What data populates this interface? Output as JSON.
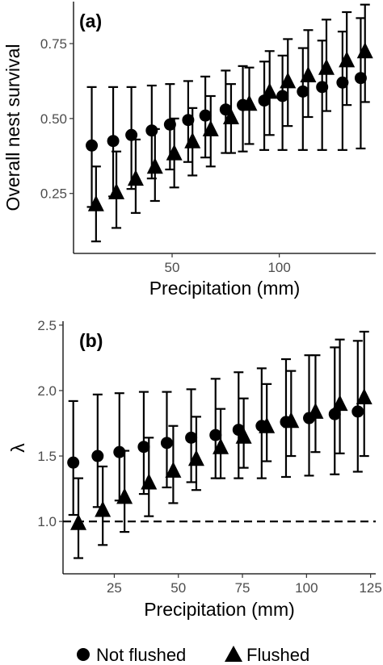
{
  "chart_data": [
    {
      "panel_label": "(a)",
      "type": "scatter",
      "xlabel": "Precipitation (mm)",
      "ylabel": "Overall nest survival",
      "xlim": [
        4,
        145
      ],
      "ylim": [
        0.05,
        0.89
      ],
      "xticks": [
        50,
        100
      ],
      "yticks": [
        0.25,
        0.5,
        0.75
      ],
      "ytick_labels": [
        "0.25",
        "0.50",
        "0.75"
      ],
      "series": [
        {
          "name": "Not flushed",
          "marker": "circle",
          "x": [
            12.5,
            22.5,
            31,
            40.5,
            49,
            57.5,
            65.5,
            75,
            83,
            93,
            101.5,
            111,
            120,
            129.5,
            138
          ],
          "y": [
            0.41,
            0.425,
            0.445,
            0.46,
            0.48,
            0.495,
            0.51,
            0.53,
            0.545,
            0.56,
            0.575,
            0.59,
            0.605,
            0.62,
            0.635
          ],
          "lower": [
            0.205,
            0.24,
            0.265,
            0.3,
            0.33,
            0.355,
            0.37,
            0.385,
            0.39,
            0.395,
            0.395,
            0.395,
            0.395,
            0.395,
            0.4
          ],
          "upper": [
            0.605,
            0.605,
            0.605,
            0.61,
            0.615,
            0.625,
            0.64,
            0.66,
            0.675,
            0.69,
            0.71,
            0.735,
            0.76,
            0.79,
            0.835
          ]
        },
        {
          "name": "Flushed",
          "marker": "triangle",
          "x": [
            14.5,
            24,
            33,
            42,
            51,
            59.5,
            68,
            77.5,
            86,
            95.5,
            104,
            113.5,
            122,
            131.5,
            140
          ],
          "y": [
            0.215,
            0.255,
            0.3,
            0.34,
            0.385,
            0.425,
            0.465,
            0.505,
            0.55,
            0.59,
            0.625,
            0.645,
            0.67,
            0.695,
            0.725
          ],
          "lower": [
            0.09,
            0.135,
            0.185,
            0.225,
            0.27,
            0.31,
            0.34,
            0.385,
            0.415,
            0.445,
            0.475,
            0.505,
            0.525,
            0.545,
            0.555
          ],
          "upper": [
            0.34,
            0.39,
            0.43,
            0.465,
            0.5,
            0.535,
            0.575,
            0.615,
            0.67,
            0.725,
            0.765,
            0.795,
            0.83,
            0.855,
            0.88
          ]
        }
      ]
    },
    {
      "panel_label": "(b)",
      "type": "scatter",
      "xlabel": "Precipitation (mm)",
      "ylabel": "λ",
      "xlim": [
        5,
        127
      ],
      "ylim": [
        0.6,
        2.53
      ],
      "xticks": [
        25,
        50,
        75,
        100,
        125
      ],
      "yticks": [
        1.0,
        1.5,
        2.0,
        2.5
      ],
      "ytick_labels": [
        "1.0",
        "1.5",
        "2.0",
        "2.5"
      ],
      "reference_line": 1.0,
      "series": [
        {
          "name": "Not flushed",
          "marker": "circle",
          "x": [
            9,
            18.5,
            27,
            36.5,
            45.5,
            55,
            64.5,
            73.5,
            82.5,
            92,
            101,
            111,
            120
          ],
          "y": [
            1.45,
            1.5,
            1.53,
            1.57,
            1.6,
            1.64,
            1.66,
            1.7,
            1.73,
            1.76,
            1.79,
            1.82,
            1.84
          ],
          "lower": [
            1.05,
            1.11,
            1.16,
            1.21,
            1.26,
            1.3,
            1.33,
            1.33,
            1.33,
            1.34,
            1.35,
            1.36,
            1.38
          ],
          "upper": [
            1.92,
            1.97,
            1.98,
            1.99,
            1.99,
            2.01,
            2.09,
            2.14,
            2.17,
            2.24,
            2.27,
            2.33,
            2.38
          ]
        },
        {
          "name": "Flushed",
          "marker": "triangle",
          "x": [
            11,
            20.5,
            29,
            38.5,
            48,
            57,
            66.5,
            75.5,
            84.5,
            94,
            103.5,
            113,
            122.5
          ],
          "y": [
            0.99,
            1.09,
            1.19,
            1.3,
            1.39,
            1.48,
            1.57,
            1.65,
            1.73,
            1.77,
            1.84,
            1.9,
            1.95
          ],
          "lower": [
            0.72,
            0.82,
            0.92,
            1.04,
            1.14,
            1.24,
            1.33,
            1.41,
            1.46,
            1.5,
            1.53,
            1.52,
            1.5
          ],
          "upper": [
            1.33,
            1.42,
            1.54,
            1.64,
            1.73,
            1.8,
            1.86,
            1.94,
            2.05,
            2.15,
            2.27,
            2.39,
            2.45
          ]
        }
      ]
    }
  ],
  "legend": {
    "items": [
      {
        "label": "Not flushed",
        "marker": "circle"
      },
      {
        "label": "Flushed",
        "marker": "triangle"
      }
    ]
  }
}
